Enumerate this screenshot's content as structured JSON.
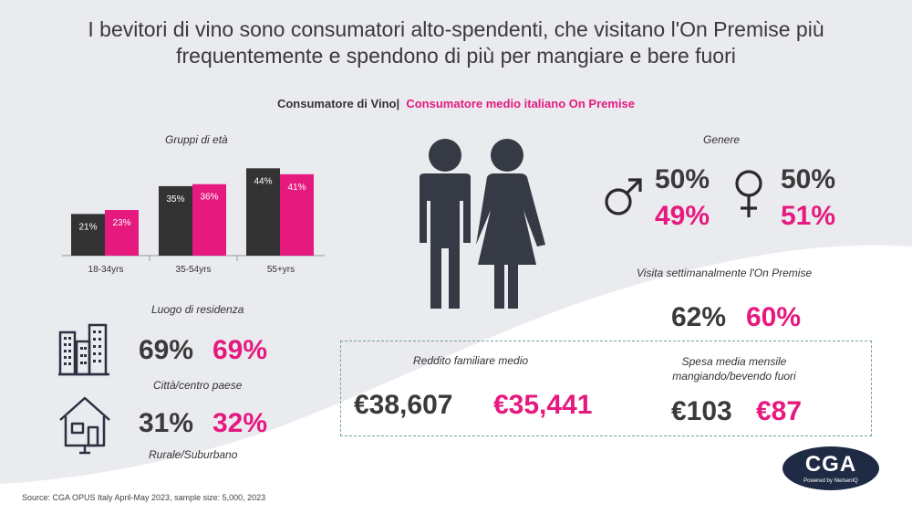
{
  "title_line1": "I bevitori di vino sono consumatori alto-spendenti, che visitano l'On Premise più",
  "title_line2": "frequentemente e spendono di più per mangiare e bere fuori",
  "legend": {
    "wine": "Consumatore  di Vino",
    "sep": "|",
    "avg": "Consumatore  medio italiano  On Premise"
  },
  "colors": {
    "wine": "#333333",
    "avg": "#e6197f",
    "background_curve": "#e9ebef",
    "box_border": "#6fa3a3",
    "logo": "#1f2a44"
  },
  "chart_data": {
    "type": "bar",
    "title": "Gruppi di età",
    "categories": [
      "18-34yrs",
      "35-54yrs",
      "55+yrs"
    ],
    "series": [
      {
        "values": [
          21,
          35,
          44
        ],
        "color": "#333333",
        "labels": [
          "21%",
          "35%",
          "44%"
        ]
      },
      {
        "values": [
          23,
          36,
          41
        ],
        "color": "#e6197f",
        "labels": [
          "23%",
          "36%",
          "41%"
        ]
      }
    ],
    "ylim": [
      0,
      46
    ],
    "value_format": "%"
  },
  "residence": {
    "title": "Luogo di residenza",
    "city": {
      "wine": "69%",
      "avg": "69%",
      "label": "Città/centro paese",
      "icon": "city-buildings-icon"
    },
    "rural": {
      "wine": "31%",
      "avg": "32%",
      "label": "Rurale/Suburbano",
      "icon": "house-icon"
    }
  },
  "people_icon": "couple-icon",
  "gender": {
    "title": "Genere",
    "male": {
      "wine": "50%",
      "avg": "49%",
      "icon": "male-symbol-icon"
    },
    "female": {
      "wine": "50%",
      "avg": "51%",
      "icon": "female-symbol-icon"
    }
  },
  "weekly": {
    "title": "Visita settimanalmente l'On Premise",
    "wine": "62%",
    "avg": "60%"
  },
  "income": {
    "title": "Reddito familiare medio",
    "wine": "€38,607",
    "avg": "€35,441"
  },
  "spend": {
    "title_line1": "Spesa media mensile",
    "title_line2": "mangiando/bevendo fuori",
    "wine": "€103",
    "avg": "€87"
  },
  "logo": {
    "text": "CGA",
    "sub": "Powered by NielsenIQ"
  },
  "source": "Source: CGA OPUS  Italy April-May 2023, sample size: 5,000, 2023"
}
